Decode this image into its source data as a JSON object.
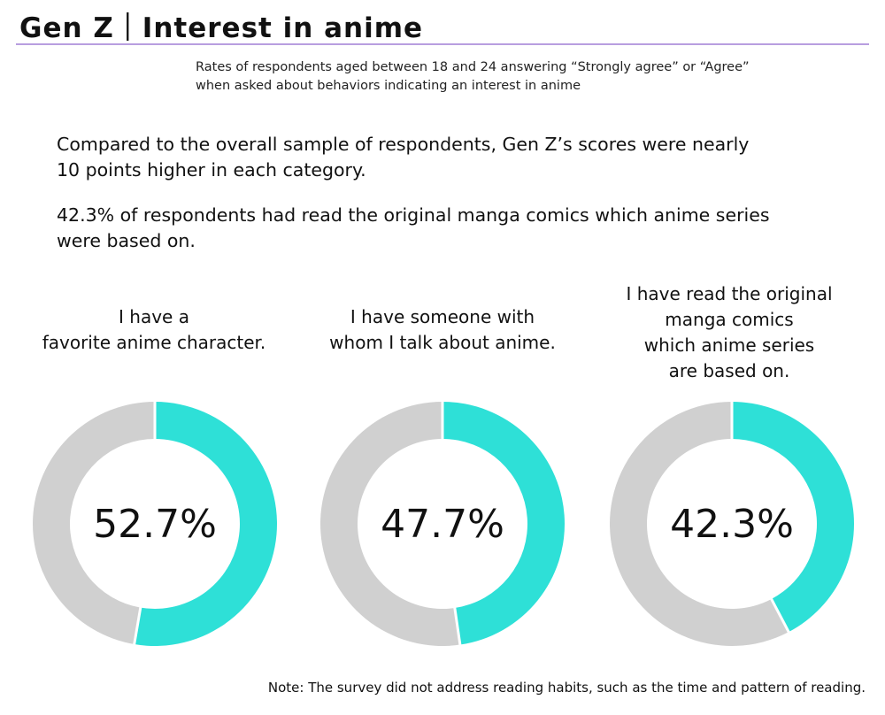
{
  "header": {
    "title": "Gen Z｜Interest in anime",
    "subtitle_line1": "Rates of respondents aged between 18 and 24 answering “Strongly agree” or “Agree”",
    "subtitle_line2": "when asked about behaviors indicating an interest in anime"
  },
  "body": {
    "paragraph1_line1": "Compared to the overall sample of respondents,  Gen Z’s scores were nearly",
    "paragraph1_line2": "10 points higher in each category.",
    "paragraph2_line1": "42.3% of respondents had read the original manga comics which anime series",
    "paragraph2_line2": "were based on."
  },
  "colors": {
    "filled": "#2ee0d7",
    "remainder": "#d0d0d0",
    "rule": "#b89ee0"
  },
  "chart_data": [
    {
      "type": "pie",
      "title_lines": [
        "I have a",
        "favorite anime character."
      ],
      "value": 52.7,
      "value_label": "52.7%"
    },
    {
      "type": "pie",
      "title_lines": [
        "I have someone with",
        "whom I talk about anime."
      ],
      "value": 47.7,
      "value_label": "47.7%"
    },
    {
      "type": "pie",
      "title_lines": [
        "I have read the original",
        "manga comics",
        "which anime series",
        "are based on."
      ],
      "value": 42.3,
      "value_label": "42.3%"
    }
  ],
  "footer": {
    "note": "Note: The survey did not address reading habits, such as the time and pattern of reading."
  }
}
